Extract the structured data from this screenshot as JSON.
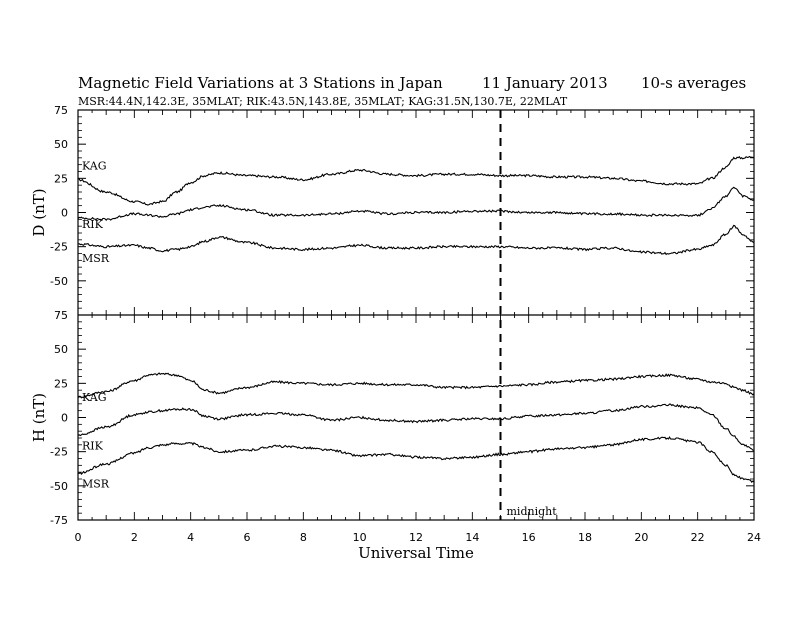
{
  "header": {
    "title": "Magnetic Field Variations at 3 Stations in Japan",
    "date": "11 January  2013",
    "averaging": "10-s averages",
    "stations_line": "MSR:44.4N,142.3E, 35MLAT;  RIK:43.5N,143.8E, 35MLAT;  KAG:31.5N,130.7E, 22MLAT"
  },
  "annotations": {
    "midnight_label": "midnight",
    "midnight_ut": 15
  },
  "chart_data": [
    {
      "type": "line",
      "panel": "D",
      "title": "Magnetic Field Variations at 3 Stations in Japan",
      "xlabel": "Universal Time",
      "ylabel": "D (nT)",
      "xlim": [
        0,
        24
      ],
      "ylim": [
        -75,
        75
      ],
      "xticks": [
        0,
        2,
        4,
        6,
        8,
        10,
        12,
        14,
        16,
        18,
        20,
        22,
        24
      ],
      "yticks": [
        75,
        50,
        25,
        0,
        -25,
        -50,
        -75
      ],
      "x": [
        0,
        1,
        2,
        2.5,
        3,
        3.5,
        4,
        4.5,
        5,
        6,
        7,
        8,
        9,
        10,
        11,
        12,
        13,
        14,
        15,
        16,
        17,
        18,
        19,
        20,
        21,
        22,
        22.5,
        23,
        23.3,
        23.6,
        24
      ],
      "series": [
        {
          "name": "KAG",
          "label_offset": 14,
          "values": [
            24,
            15,
            8,
            6,
            8,
            15,
            22,
            27,
            29,
            27,
            26,
            24,
            28,
            31,
            28,
            27,
            28,
            28,
            27,
            27,
            26,
            26,
            25,
            23,
            21,
            21,
            25,
            33,
            40,
            40,
            41
          ]
        },
        {
          "name": "RIK",
          "label_offset": -6,
          "values": [
            -4,
            -5,
            -1,
            -2,
            -3,
            -1,
            2,
            4,
            5,
            2,
            -2,
            -2,
            -1,
            1,
            -1,
            0,
            0,
            1,
            1,
            0,
            0,
            -1,
            -1,
            -2,
            -2,
            -2,
            3,
            12,
            18,
            12,
            9
          ]
        },
        {
          "name": "MSR",
          "label_offset": -14,
          "values": [
            -23,
            -25,
            -24,
            -26,
            -28,
            -27,
            -25,
            -21,
            -18,
            -22,
            -26,
            -27,
            -26,
            -24,
            -26,
            -26,
            -25,
            -25,
            -25,
            -26,
            -26,
            -27,
            -26,
            -29,
            -30,
            -27,
            -24,
            -16,
            -10,
            -16,
            -22
          ]
        }
      ]
    },
    {
      "type": "line",
      "panel": "H",
      "xlabel": "Universal Time",
      "ylabel": "H (nT)",
      "xlim": [
        0,
        24
      ],
      "ylim": [
        -75,
        75
      ],
      "xticks": [
        0,
        2,
        4,
        6,
        8,
        10,
        12,
        14,
        16,
        18,
        20,
        22,
        24
      ],
      "yticks": [
        75,
        50,
        25,
        0,
        -25,
        -50,
        -75
      ],
      "x": [
        0,
        1,
        2,
        2.5,
        3,
        3.5,
        4,
        4.5,
        5,
        6,
        7,
        8,
        9,
        10,
        11,
        12,
        13,
        14,
        15,
        16,
        17,
        18,
        19,
        20,
        21,
        22,
        22.5,
        23,
        23.3,
        23.6,
        24
      ],
      "series": [
        {
          "name": "KAG",
          "label_offset": 0,
          "values": [
            15,
            19,
            27,
            31,
            32,
            31,
            27,
            20,
            18,
            22,
            26,
            25,
            24,
            25,
            24,
            24,
            22,
            22,
            23,
            24,
            26,
            27,
            28,
            30,
            31,
            28,
            26,
            25,
            22,
            20,
            17
          ]
        },
        {
          "name": "RIK",
          "label_offset": -10,
          "values": [
            -13,
            -7,
            2,
            4,
            5,
            6,
            6,
            1,
            -1,
            2,
            3,
            2,
            -2,
            0,
            -2,
            -3,
            -2,
            -1,
            -1,
            1,
            2,
            3,
            5,
            8,
            9,
            7,
            2,
            -8,
            -14,
            -20,
            -24
          ]
        },
        {
          "name": "MSR",
          "label_offset": -10,
          "values": [
            -41,
            -34,
            -26,
            -22,
            -20,
            -19,
            -19,
            -22,
            -25,
            -24,
            -21,
            -22,
            -24,
            -28,
            -27,
            -29,
            -30,
            -29,
            -27,
            -25,
            -23,
            -22,
            -20,
            -16,
            -15,
            -18,
            -25,
            -35,
            -42,
            -45,
            -47
          ]
        }
      ]
    }
  ]
}
